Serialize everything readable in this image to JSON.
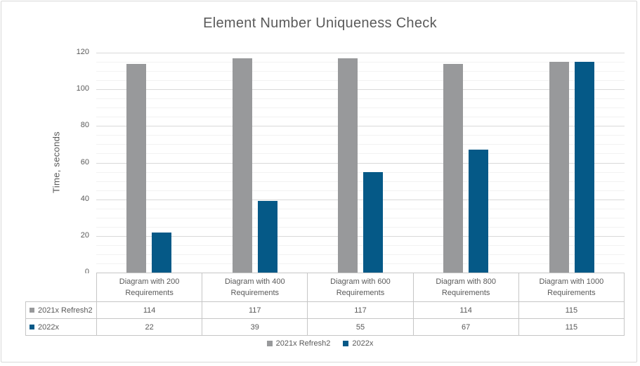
{
  "chart_data": {
    "type": "bar",
    "title": "Element Number Uniqueness Check",
    "xlabel": "",
    "ylabel": "Time, seconds",
    "ylim": [
      0,
      120
    ],
    "y_ticks": [
      0,
      20,
      40,
      60,
      80,
      100,
      120
    ],
    "y_major_step": 20,
    "y_minor_step": 5,
    "grid": true,
    "legend_position": "bottom",
    "show_data_table": true,
    "categories": [
      "Diagram with 200 Requirements",
      "Diagram with 400 Requirements",
      "Diagram with 600 Requirements",
      "Diagram with 800 Requirements",
      "Diagram with 1000 Requirements"
    ],
    "series": [
      {
        "name": "2021x Refresh2",
        "color": "#98999B",
        "values": [
          114,
          117,
          117,
          114,
          115
        ]
      },
      {
        "name": "2022x",
        "color": "#055987",
        "values": [
          22,
          39,
          55,
          67,
          115
        ]
      }
    ]
  },
  "colors": {
    "background": "#FFFFFF",
    "frame_border": "#D8D8D8",
    "title_text": "#5A5A5A",
    "axis_text": "#595959",
    "table_text": "#595959",
    "table_border": "#C6C6C6",
    "grid_major": "#D9D9D9",
    "grid_minor": "#F2F2F2",
    "series_gray": "#98999B",
    "series_blue": "#055987"
  }
}
